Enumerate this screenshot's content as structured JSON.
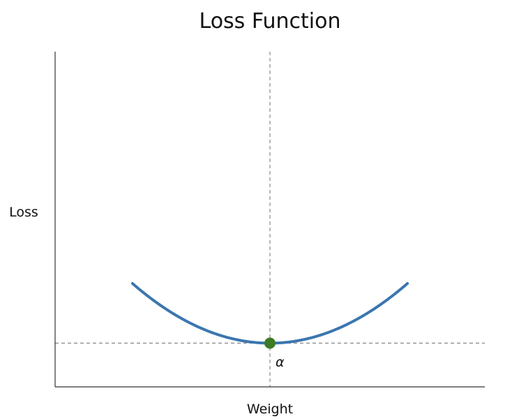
{
  "chart_data": {
    "type": "line",
    "title": "Loss Function",
    "xlabel": "Weight",
    "ylabel": "Loss",
    "xlim": [
      -1.0,
      1.0
    ],
    "ylim": [
      -0.3,
      2.0
    ],
    "grid": false,
    "ticks_visible": false,
    "series": [
      {
        "name": "loss",
        "function": "x^2",
        "x_range": [
          -0.64,
          0.64
        ],
        "color": "#3b76b0"
      }
    ],
    "reference_lines": [
      {
        "orientation": "vertical",
        "value": 0,
        "style": "dashed",
        "color": "#888888"
      },
      {
        "orientation": "horizontal",
        "value": 0,
        "style": "dashed",
        "color": "#888888"
      }
    ],
    "minimum_point": {
      "x": 0,
      "y": 0,
      "color": "#3c7a25"
    },
    "annotations": [
      {
        "text": "α",
        "x": 0,
        "y": 0,
        "position": "below-right of minimum"
      }
    ]
  }
}
